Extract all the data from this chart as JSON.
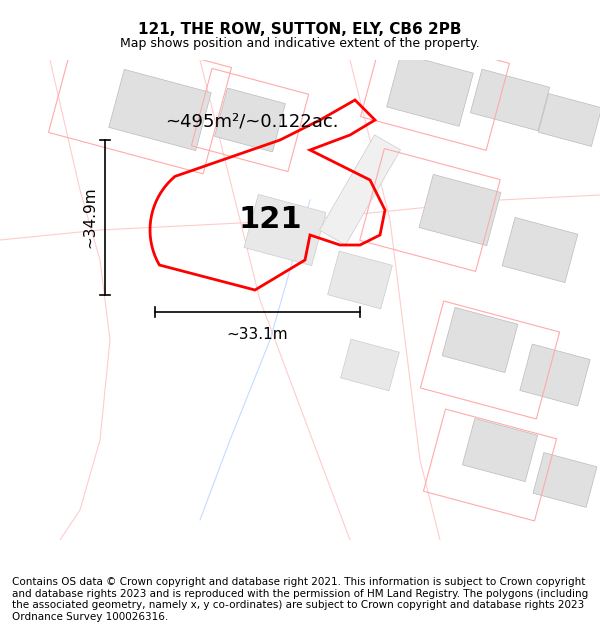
{
  "title": "121, THE ROW, SUTTON, ELY, CB6 2PB",
  "subtitle": "Map shows position and indicative extent of the property.",
  "footer": "Contains OS data © Crown copyright and database right 2021. This information is subject to Crown copyright and database rights 2023 and is reproduced with the permission of HM Land Registry. The polygons (including the associated geometry, namely x, y co-ordinates) are subject to Crown copyright and database rights 2023 Ordnance Survey 100026316.",
  "area_label": "~495m²/~0.122ac.",
  "width_label": "~33.1m",
  "height_label": "~34.9m",
  "plot_number": "121",
  "bg_color": "#ffffff",
  "map_bg": "#f5f5f5",
  "title_fontsize": 11,
  "subtitle_fontsize": 9,
  "footer_fontsize": 7.5,
  "label_fontsize": 13,
  "plot_label_fontsize": 18,
  "main_plot_color": "#ff0000",
  "surrounding_plot_color": "#ffaaaa",
  "building_fill": "#dddddd",
  "road_color": "#f0d0d0"
}
